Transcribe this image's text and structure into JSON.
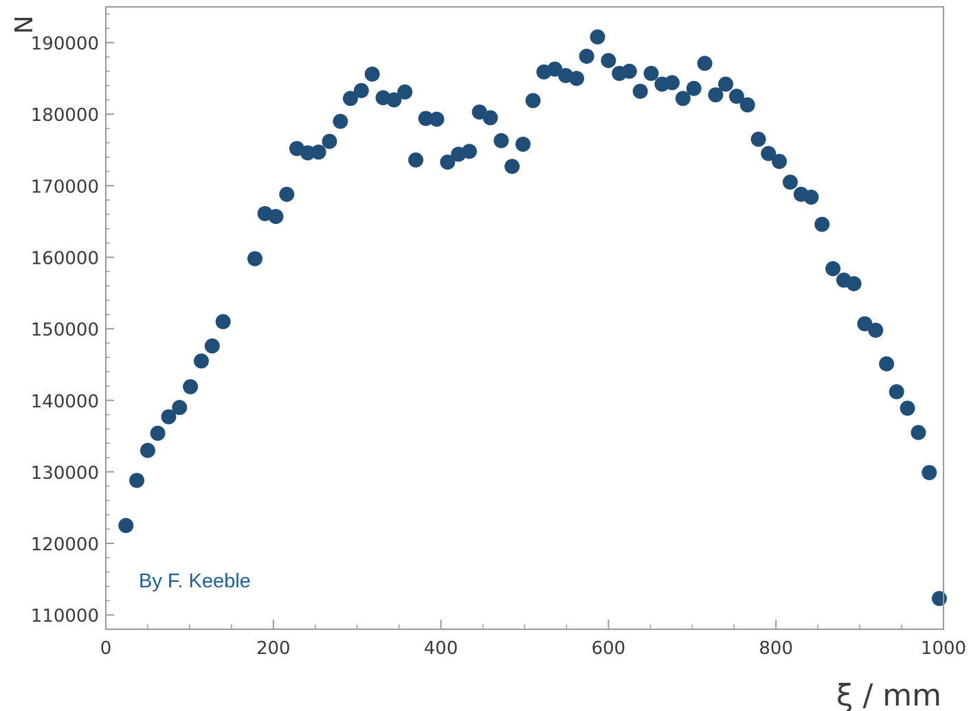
{
  "chart_data": {
    "type": "scatter",
    "xlabel": "ξ / mm",
    "ylabel": "N",
    "annotation": "By F. Keeble",
    "xlim": [
      0,
      1000
    ],
    "ylim": [
      108000,
      195000
    ],
    "x_ticks": [
      0,
      200,
      400,
      600,
      800,
      1000
    ],
    "x_tick_labels": [
      "0",
      "200",
      "400",
      "600",
      "800",
      "1000"
    ],
    "y_ticks": [
      110000,
      120000,
      130000,
      140000,
      150000,
      160000,
      170000,
      180000,
      190000
    ],
    "y_tick_labels": [
      "110000",
      "120000",
      "130000",
      "140000",
      "150000",
      "160000",
      "170000",
      "180000",
      "190000"
    ],
    "grid": false,
    "marker_color": "#1f4e79",
    "credit_color": "#1f5f9c",
    "axis_color": "#9a9a9a",
    "points": [
      [
        24,
        122500
      ],
      [
        37,
        128800
      ],
      [
        50,
        133000
      ],
      [
        62,
        135400
      ],
      [
        75,
        137700
      ],
      [
        88,
        139000
      ],
      [
        101,
        141900
      ],
      [
        114,
        145500
      ],
      [
        127,
        147600
      ],
      [
        140,
        151000
      ],
      [
        178,
        159800
      ],
      [
        190,
        166100
      ],
      [
        203,
        165700
      ],
      [
        216,
        168800
      ],
      [
        228,
        175200
      ],
      [
        241,
        174600
      ],
      [
        254,
        174700
      ],
      [
        267,
        176200
      ],
      [
        280,
        179000
      ],
      [
        292,
        182200
      ],
      [
        305,
        183300
      ],
      [
        318,
        185600
      ],
      [
        331,
        182300
      ],
      [
        344,
        182000
      ],
      [
        357,
        183100
      ],
      [
        370,
        173600
      ],
      [
        382,
        179400
      ],
      [
        395,
        179300
      ],
      [
        408,
        173300
      ],
      [
        421,
        174400
      ],
      [
        434,
        174800
      ],
      [
        446,
        180300
      ],
      [
        459,
        179500
      ],
      [
        472,
        176300
      ],
      [
        485,
        172700
      ],
      [
        498,
        175800
      ],
      [
        510,
        181900
      ],
      [
        523,
        185900
      ],
      [
        536,
        186300
      ],
      [
        549,
        185400
      ],
      [
        562,
        185000
      ],
      [
        574,
        188100
      ],
      [
        587,
        190800
      ],
      [
        600,
        187500
      ],
      [
        613,
        185700
      ],
      [
        625,
        186000
      ],
      [
        638,
        183200
      ],
      [
        651,
        185700
      ],
      [
        664,
        184200
      ],
      [
        676,
        184400
      ],
      [
        689,
        182200
      ],
      [
        702,
        183600
      ],
      [
        715,
        187100
      ],
      [
        728,
        182700
      ],
      [
        740,
        184200
      ],
      [
        753,
        182500
      ],
      [
        766,
        181300
      ],
      [
        779,
        176500
      ],
      [
        791,
        174500
      ],
      [
        804,
        173400
      ],
      [
        817,
        170500
      ],
      [
        830,
        168800
      ],
      [
        842,
        168400
      ],
      [
        855,
        164600
      ],
      [
        868,
        158400
      ],
      [
        881,
        156800
      ],
      [
        893,
        156300
      ],
      [
        906,
        150700
      ],
      [
        919,
        149800
      ],
      [
        932,
        145100
      ],
      [
        944,
        141200
      ],
      [
        957,
        138900
      ],
      [
        970,
        135500
      ],
      [
        983,
        129900
      ],
      [
        995,
        112300
      ]
    ]
  }
}
